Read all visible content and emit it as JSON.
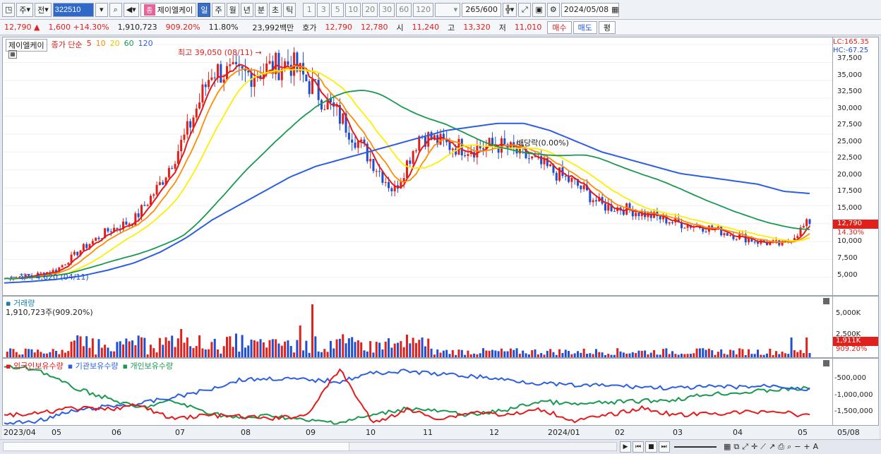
{
  "toolbar": {
    "period_type": "주",
    "market": "전",
    "code": "322510",
    "stock_name": "제이엘케이",
    "badge_letter": "종",
    "intervals": [
      "일",
      "주",
      "월",
      "년",
      "분",
      "초",
      "틱"
    ],
    "active_interval": "일",
    "minute_options": [
      "1",
      "3",
      "5",
      "10",
      "20",
      "30",
      "60",
      "120"
    ],
    "count": "265",
    "count_max": "/600",
    "date": "2024/05/08"
  },
  "quote": {
    "price": "12,790",
    "change": "1,600",
    "change_pct": "+14.30%",
    "volume": "1,910,723",
    "volume_ratio": "909.20%",
    "turnover": "11.80%",
    "amount": "23,992백만",
    "bid_label": "호가",
    "ask": "12,790",
    "bid": "12,780",
    "open_label": "시",
    "open": "11,240",
    "high_label": "고",
    "high": "13,320",
    "low_label": "저",
    "low": "11,010",
    "buy_label": "매수",
    "sell_label": "매도",
    "eval_label": "평"
  },
  "price_panel": {
    "stock_tag": "제이엘케이",
    "ma_label": "종가 단순",
    "ma_periods": [
      "5",
      "10",
      "20",
      "60",
      "120"
    ],
    "ma_colors": [
      "#e41a1c",
      "#ff8c00",
      "#ffee00",
      "#1a9850",
      "#2c5fe0"
    ],
    "high_marker": "최고 39,050 (08/11)",
    "low_marker": "최저 4,620 (04/11)",
    "ex_div_marker": "배당락(0.00%)",
    "lc": "LC:165.35",
    "hc": "HC:-67.25",
    "y_ticks": [
      "37,500",
      "35,000",
      "32,500",
      "30,000",
      "27,500",
      "25,000",
      "22,500",
      "20,000",
      "17,500",
      "15,000",
      "12,500",
      "10,000",
      "7,500",
      "5,000"
    ],
    "current_price": "12,790",
    "current_pct": "14.30%"
  },
  "volume_panel": {
    "title": "거래량",
    "summary": "1,910,723주(909.20%)",
    "y_ticks": [
      "5,000K",
      "2,500K"
    ],
    "current": "1,911K",
    "current_pct": "909.20%"
  },
  "holding_panel": {
    "legend": [
      "외국인보유수량",
      "기관보유수량",
      "개인보유수량"
    ],
    "legend_colors": [
      "#e41a1c",
      "#2c5fe0",
      "#1a9850"
    ],
    "y_ticks": [
      "-500,000",
      "-1,000,000",
      "-1,500,000"
    ]
  },
  "x_axis": {
    "labels": [
      "2023/04",
      "05",
      "06",
      "07",
      "08",
      "09",
      "10",
      "11",
      "12",
      "2024/01",
      "02",
      "03",
      "04",
      "05",
      "05/08"
    ]
  },
  "bottom": {
    "controls": [
      "▶",
      "⏮",
      "■",
      "⏭",
      "+",
      "A"
    ]
  },
  "chart_data": {
    "type": "line",
    "title": "",
    "series": [
      {
        "name": "5",
        "values": [
          4800,
          5200,
          6000,
          9000,
          11500,
          13000,
          18000,
          25000,
          34000,
          33000,
          34000,
          35000,
          31000,
          27000,
          22000,
          17000,
          25000,
          23500,
          23000,
          23500,
          22000,
          20000,
          18000,
          15000,
          14500,
          13500,
          12500,
          12000,
          11000,
          10000,
          9500,
          12800
        ]
      },
      {
        "name": "120",
        "values": [
          4200,
          4400,
          4700,
          5200,
          6000,
          7000,
          8500,
          10500,
          13000,
          15000,
          17000,
          19000,
          20500,
          21500,
          22500,
          23500,
          24500,
          25500,
          26000,
          26500,
          26500,
          25500,
          24000,
          22500,
          21500,
          20500,
          19500,
          19000,
          18500,
          18000,
          17000,
          16700
        ]
      }
    ],
    "ylim": [
      2500,
      38500
    ]
  }
}
